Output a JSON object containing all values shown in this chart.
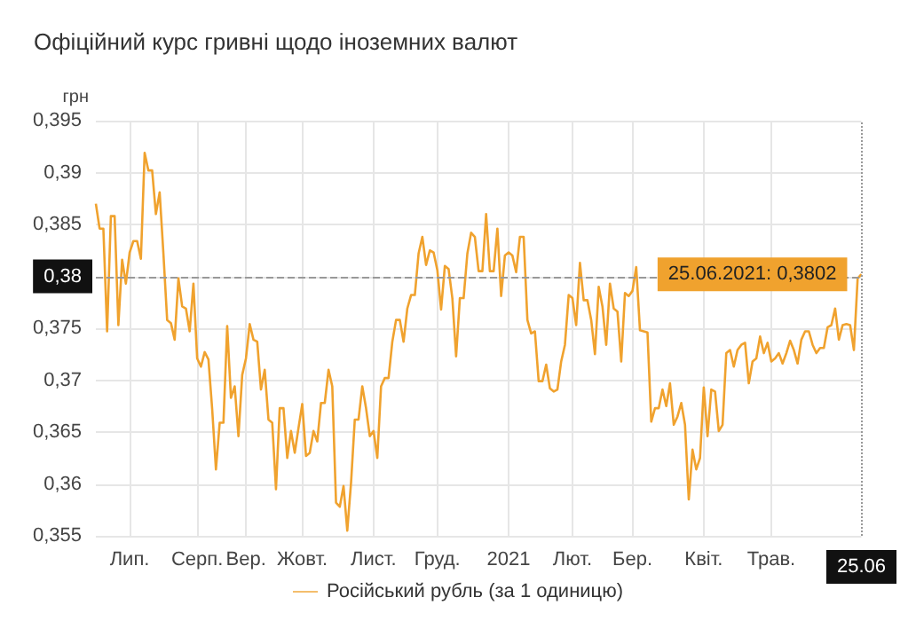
{
  "chart_data": {
    "type": "line",
    "title": "Офіційний курс гривні щодо іноземних валют",
    "ylabel": "грн",
    "categories": [
      null,
      null,
      null,
      null,
      null,
      null,
      null,
      null,
      null,
      "Лип.",
      null,
      null,
      null,
      null,
      null,
      null,
      null,
      null,
      null,
      null,
      null,
      null,
      null,
      null,
      null,
      null,
      null,
      "Серп.",
      null,
      null,
      null,
      null,
      null,
      null,
      null,
      null,
      null,
      null,
      null,
      null,
      "Вер.",
      null,
      null,
      null,
      null,
      null,
      null,
      null,
      null,
      null,
      null,
      null,
      null,
      null,
      null,
      "Жовт.",
      null,
      null,
      null,
      null,
      null,
      null,
      null,
      null,
      null,
      null,
      null,
      null,
      null,
      null,
      null,
      null,
      null,
      null,
      "Лист.",
      null,
      null,
      null,
      null,
      null,
      null,
      null,
      null,
      null,
      null,
      null,
      null,
      null,
      null,
      null,
      null,
      "Груд.",
      null,
      null,
      null,
      null,
      null,
      null,
      null,
      null,
      null,
      null,
      null,
      null,
      null,
      null,
      null,
      null,
      null,
      null,
      "2021",
      null,
      null,
      null,
      null,
      null,
      null,
      null,
      null,
      null,
      null,
      null,
      null,
      null,
      null,
      null,
      null,
      "Лют.",
      null,
      null,
      null,
      null,
      null,
      null,
      null,
      null,
      null,
      null,
      null,
      null,
      null,
      null,
      null,
      "Бер.",
      null,
      null,
      null,
      null,
      null,
      null,
      null,
      null,
      null,
      null,
      null,
      null,
      null,
      null,
      null,
      null,
      null,
      null,
      "Квіт.",
      null,
      null,
      null,
      null,
      null,
      null,
      null,
      null,
      null,
      null,
      null,
      null,
      null,
      null,
      null,
      null,
      null,
      "Трав.",
      null,
      null,
      null,
      null,
      null,
      null,
      null,
      null,
      null,
      null,
      null,
      null,
      null,
      null,
      null,
      null,
      null,
      null,
      null,
      null,
      null,
      null,
      null,
      "25.06"
    ],
    "series": [
      {
        "name": "Російський рубль (за 1 одиницю)",
        "color": "#f0a22e",
        "values": [
          0.387,
          0.3846,
          0.3846,
          0.3747,
          0.3858,
          0.3858,
          0.3753,
          0.3816,
          0.3793,
          0.3823,
          0.3834,
          0.3834,
          0.3817,
          0.3919,
          0.3902,
          0.3902,
          0.386,
          0.3881,
          0.3822,
          0.3758,
          0.3755,
          0.3739,
          0.3798,
          0.3771,
          0.3769,
          0.3747,
          0.3793,
          0.3721,
          0.3713,
          0.3727,
          0.372,
          0.3672,
          0.3614,
          0.3659,
          0.3659,
          0.3752,
          0.3683,
          0.3694,
          0.3646,
          0.3705,
          0.3721,
          0.3754,
          0.3739,
          0.3737,
          0.3691,
          0.371,
          0.3662,
          0.3659,
          0.3595,
          0.3673,
          0.3673,
          0.3625,
          0.3651,
          0.363,
          0.3654,
          0.3677,
          0.3627,
          0.363,
          0.3651,
          0.3641,
          0.3678,
          0.3678,
          0.371,
          0.3694,
          0.3582,
          0.3578,
          0.3598,
          0.3555,
          0.3601,
          0.3662,
          0.3662,
          0.3694,
          0.3673,
          0.3646,
          0.3651,
          0.3625,
          0.3694,
          0.3702,
          0.3702,
          0.3737,
          0.3758,
          0.3758,
          0.3737,
          0.3769,
          0.3782,
          0.3782,
          0.3822,
          0.3838,
          0.3811,
          0.3825,
          0.3823,
          0.3806,
          0.3768,
          0.381,
          0.3807,
          0.3779,
          0.3723,
          0.3779,
          0.3779,
          0.3822,
          0.3842,
          0.3838,
          0.3805,
          0.3805,
          0.386,
          0.3805,
          0.3805,
          0.3846,
          0.3781,
          0.382,
          0.3823,
          0.382,
          0.3804,
          0.3838,
          0.3838,
          0.3758,
          0.3745,
          0.3747,
          0.3699,
          0.3699,
          0.3715,
          0.3692,
          0.3689,
          0.3691,
          0.3718,
          0.3734,
          0.3782,
          0.3779,
          0.3753,
          0.3813,
          0.3777,
          0.3777,
          0.3758,
          0.3725,
          0.379,
          0.3771,
          0.3734,
          0.3793,
          0.3769,
          0.3766,
          0.3718,
          0.3784,
          0.3781,
          0.3786,
          0.3809,
          0.3748,
          0.3747,
          0.3746,
          0.366,
          0.3673,
          0.3673,
          0.3691,
          0.3675,
          0.3697,
          0.3657,
          0.3665,
          0.3678,
          0.3657,
          0.3585,
          0.3633,
          0.3614,
          0.3625,
          0.3693,
          0.3646,
          0.3691,
          0.3689,
          0.3651,
          0.3657,
          0.3726,
          0.3729,
          0.3713,
          0.3729,
          0.3734,
          0.3736,
          0.3697,
          0.3718,
          0.3721,
          0.3742,
          0.3726,
          0.3736,
          0.3718,
          0.3721,
          0.3726,
          0.3716,
          0.3726,
          0.3738,
          0.3729,
          0.3716,
          0.3739,
          0.3747,
          0.3747,
          0.3734,
          0.3726,
          0.3731,
          0.3731,
          0.3751,
          0.3753,
          0.3769,
          0.3739,
          0.3753,
          0.3754,
          0.3753,
          0.3729,
          0.3798,
          0.3802
        ]
      }
    ],
    "ylim": [
      0.355,
      0.395
    ],
    "yticks": [
      {
        "value": 0.355,
        "label": "0,355"
      },
      {
        "value": 0.36,
        "label": "0,36"
      },
      {
        "value": 0.365,
        "label": "0,365"
      },
      {
        "value": 0.37,
        "label": "0,37"
      },
      {
        "value": 0.375,
        "label": "0,375"
      },
      {
        "value": 0.38,
        "label": null
      },
      {
        "value": 0.385,
        "label": "0,385"
      },
      {
        "value": 0.39,
        "label": "0,39"
      },
      {
        "value": 0.395,
        "label": "0,395"
      }
    ],
    "ref_lines": [
      {
        "axis": "y",
        "value": 0.38,
        "label": "0,38",
        "line_style": "dashed"
      },
      {
        "axis": "x",
        "value": "25.06",
        "line_style": "dotted"
      }
    ],
    "annotations": [
      {
        "text": "25.06.2021: 0,3802",
        "x": "25.06",
        "y": 0.3802
      }
    ],
    "grid": true,
    "legend": "bottom",
    "marker": "none",
    "line_style": "solid"
  }
}
